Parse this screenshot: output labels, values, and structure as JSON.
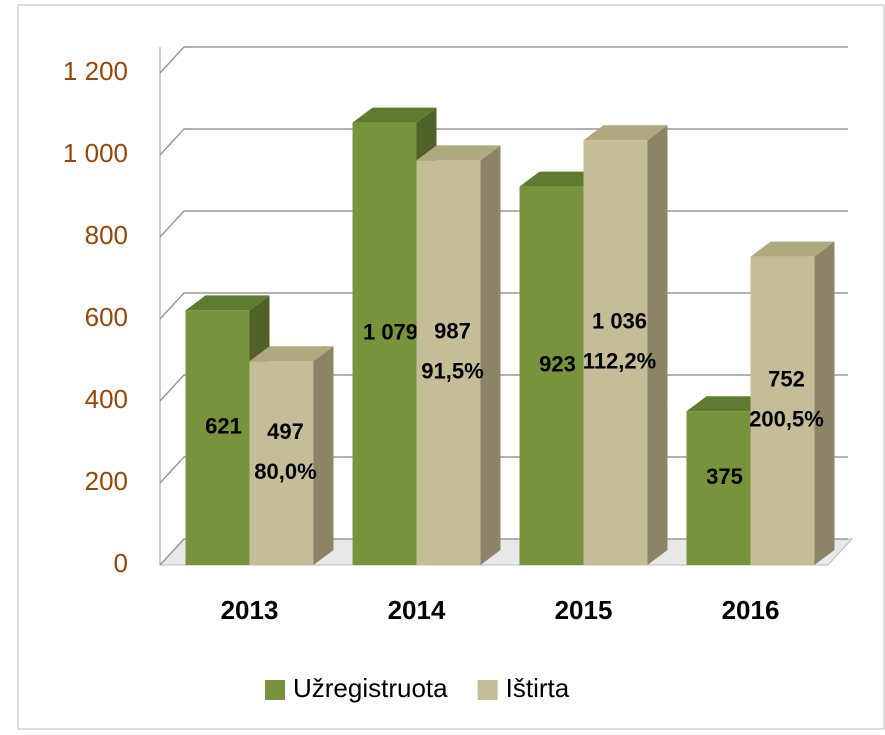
{
  "chart_data": {
    "type": "bar3d",
    "categories": [
      "2013",
      "2014",
      "2015",
      "2016"
    ],
    "series": [
      {
        "name": "Užregistruota",
        "color": "#77933c",
        "values": [
          621,
          1079,
          923,
          375
        ],
        "value_labels": [
          "621",
          "1 079",
          "923",
          "375"
        ]
      },
      {
        "name": "Ištirta",
        "color": "#c4bd97",
        "values": [
          497,
          987,
          1036,
          752
        ],
        "value_labels": [
          "497",
          "987",
          "1 036",
          "752"
        ],
        "ratios": [
          80.0,
          91.5,
          112.2,
          200.5
        ],
        "ratio_labels": [
          "80,0%",
          "91,5%",
          "112,2%",
          "200,5%"
        ]
      }
    ],
    "ylim": [
      0,
      1200
    ],
    "yticks": [
      0,
      200,
      400,
      600,
      800,
      {
        "value": 1000,
        "label": "1 000"
      },
      {
        "value": 1200,
        "label": "1 200"
      }
    ],
    "grid": true,
    "legend": "bottom"
  }
}
